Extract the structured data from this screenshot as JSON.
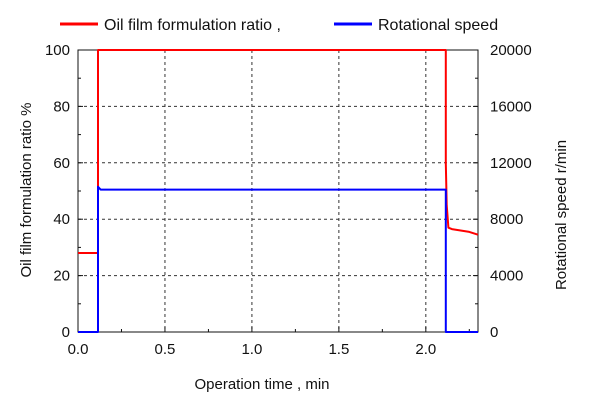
{
  "chart_data": {
    "type": "line",
    "xlabel": "Operation time , min",
    "ylabel_left": "Oil film formulation ratio  %",
    "ylabel_right": "Rotational speed  r/min",
    "xlim": [
      0,
      2.3
    ],
    "ylim_left": [
      0,
      100
    ],
    "ylim_right": [
      0,
      20000
    ],
    "x_ticks": [
      "0.0",
      "0.5",
      "1.0",
      "1.5",
      "2.0"
    ],
    "x_tick_values": [
      0,
      0.5,
      1.0,
      1.5,
      2.0
    ],
    "y_left_ticks": [
      "0",
      "20",
      "40",
      "60",
      "80",
      "100"
    ],
    "y_left_tick_values": [
      0,
      20,
      40,
      60,
      80,
      100
    ],
    "y_right_ticks": [
      "0",
      "4000",
      "8000",
      "12000",
      "16000",
      "20000"
    ],
    "y_right_tick_values": [
      0,
      4000,
      8000,
      12000,
      16000,
      20000
    ],
    "grid": true,
    "legend_position": "top",
    "series": [
      {
        "name": "Oil film formulation ratio ,",
        "axis": "left",
        "color": "#ff0000",
        "x": [
          0.0,
          0.115,
          0.115,
          2.115,
          2.115,
          2.12,
          2.13,
          2.15,
          2.2,
          2.25,
          2.3
        ],
        "y": [
          28,
          28,
          100,
          100,
          60,
          45,
          37,
          36.5,
          36,
          35.5,
          34.5
        ]
      },
      {
        "name": "Rotational speed",
        "axis": "right",
        "color": "#0000ff",
        "x": [
          0.0,
          0.115,
          0.115,
          0.13,
          2.115,
          2.115,
          2.13,
          2.3
        ],
        "y": [
          0,
          0,
          10300,
          10100,
          10100,
          0,
          0,
          0
        ]
      }
    ]
  }
}
